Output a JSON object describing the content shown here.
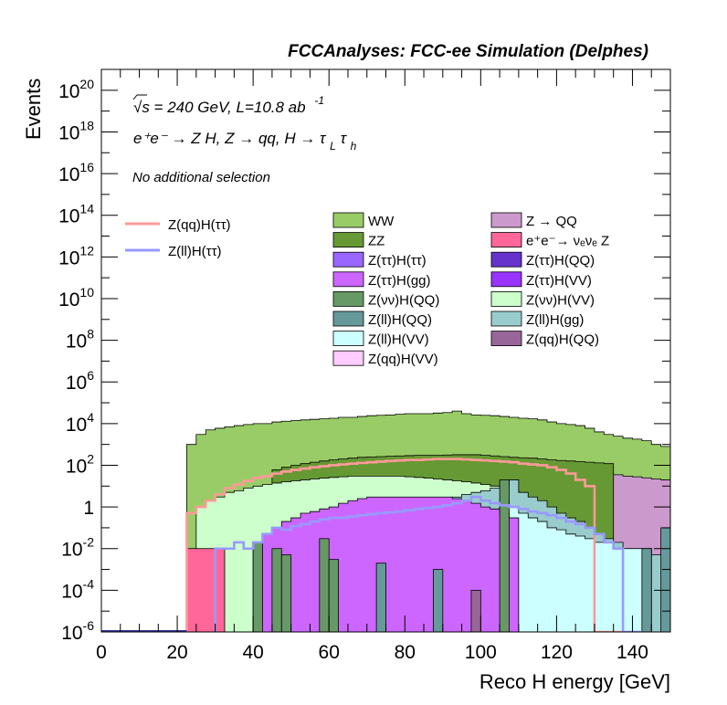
{
  "chart_data": {
    "type": "histogram",
    "title": "FCCAnalyses: FCC-ee Simulation (Delphes)",
    "xlabel": "Reco H energy [GeV]",
    "ylabel": "Events",
    "xlim": [
      0,
      150
    ],
    "ylim": [
      1e-06,
      1e+21
    ],
    "yscale": "log",
    "grid": false,
    "annotations": {
      "energy_lumi": "√s = 240 GeV, L=10.8 ab",
      "energy_lumi_exp": "-1",
      "process": "e⁺e⁻ → Z H, Z → qq, H → τ",
      "process_sub1": "L",
      "process_tau": "τ",
      "process_sub2": "h",
      "selection": "No additional selection"
    },
    "x_ticks": [
      0,
      20,
      40,
      60,
      80,
      100,
      120,
      140
    ],
    "y_ticks": [
      {
        "value": 1e-06,
        "base": "10",
        "exp": "-6"
      },
      {
        "value": 0.0001,
        "base": "10",
        "exp": "-4"
      },
      {
        "value": 0.01,
        "base": "10",
        "exp": "-2"
      },
      {
        "value": 1,
        "base": "1",
        "exp": ""
      },
      {
        "value": 100.0,
        "base": "10",
        "exp": "2"
      },
      {
        "value": 10000.0,
        "base": "10",
        "exp": "4"
      },
      {
        "value": 1000000.0,
        "base": "10",
        "exp": "6"
      },
      {
        "value": 100000000.0,
        "base": "10",
        "exp": "8"
      },
      {
        "value": 10000000000.0,
        "base": "10",
        "exp": "10"
      },
      {
        "value": 1000000000000.0,
        "base": "10",
        "exp": "12"
      },
      {
        "value": 100000000000000.0,
        "base": "10",
        "exp": "14"
      },
      {
        "value": 1e+16,
        "base": "10",
        "exp": "16"
      },
      {
        "value": 1e+18,
        "base": "10",
        "exp": "18"
      },
      {
        "value": 1e+20,
        "base": "10",
        "exp": "20"
      }
    ],
    "bin_edges_start": 20,
    "bin_width": 2.5,
    "stacked_envelopes": [
      {
        "name": "WW",
        "color": "#99cc66",
        "x0": 22.5,
        "x1": 150,
        "levels": [
          1000.0,
          3000.0,
          5000.0,
          6000.0,
          7000.0,
          8000.0,
          9000.0,
          10000.0,
          10000.0,
          12000.0,
          13000.0,
          14000.0,
          15000.0,
          16000.0,
          17000.0,
          18000.0,
          20000.0,
          20000.0,
          22000.0,
          24000.0,
          25000.0,
          26000.0,
          28000.0,
          30000.0,
          30000.0,
          30000.0,
          32000.0,
          34000.0,
          40000.0,
          30000.0,
          26000.0,
          25000.0,
          24000.0,
          22000.0,
          20000.0,
          18000.0,
          17000.0,
          15000.0,
          12000.0,
          10000.0,
          9000.0,
          8000.0,
          6000.0,
          4000.0,
          3000.0,
          2500.0,
          2000.0,
          1800.0,
          1500.0,
          1000.0,
          800.0
        ]
      },
      {
        "name": "Z → QQ",
        "color": "#cc99cc",
        "x0": 45,
        "x1": 150,
        "levels": [
          20,
          25,
          30,
          35,
          40,
          45,
          50,
          60,
          70,
          80,
          90,
          100,
          110,
          120,
          130,
          140,
          150,
          160,
          170,
          180,
          190,
          200,
          200,
          180,
          160,
          140,
          120,
          100,
          90,
          80,
          70,
          60,
          55,
          50,
          45,
          40,
          35,
          30,
          28,
          25,
          22,
          20
        ]
      },
      {
        "name": "ZZ",
        "color": "#669933",
        "x0": 45,
        "x1": 135,
        "levels": [
          60,
          80,
          100,
          120,
          140,
          160,
          180,
          200,
          220,
          240,
          250,
          260,
          270,
          280,
          290,
          300,
          300,
          300,
          310,
          320,
          320,
          320,
          300,
          280,
          260,
          240,
          230,
          220,
          200,
          180,
          170,
          160,
          150,
          140,
          130,
          120
        ]
      },
      {
        "name": "Z(ττ)H(ττ)",
        "color": "#9966ff",
        "x0": 35,
        "x1": 110,
        "levels": [
          0.05,
          0.5,
          1,
          2,
          3,
          4,
          5,
          6,
          7,
          8,
          9,
          10,
          10,
          11,
          12,
          12,
          12,
          13,
          13,
          14,
          14,
          15,
          15,
          15,
          14,
          13,
          12,
          10,
          6,
          3
        ]
      },
      {
        "name": "Z(νν)H(VV)",
        "color": "#ccffcc",
        "x0": 25,
        "x1": 110,
        "levels": [
          1,
          2,
          3,
          5,
          6,
          8,
          10,
          12,
          14,
          16,
          18,
          20,
          22,
          24,
          26,
          28,
          30,
          30,
          30,
          30,
          30,
          30,
          28,
          26,
          24,
          22,
          20,
          18,
          16,
          14,
          12,
          10,
          8,
          6
        ]
      },
      {
        "name": "Z(ll)H(gg)",
        "color": "#99cccc",
        "x0": 55,
        "x1": 150,
        "levels": [
          0.01,
          0.02,
          0.03,
          0.05,
          0.08,
          0.1,
          0.2,
          0.3,
          0.5,
          0.8,
          1,
          1.2,
          1.5,
          2,
          2.5,
          3,
          4,
          5,
          6,
          8,
          10,
          20,
          5,
          3,
          2,
          1,
          0.5,
          0.3,
          0.2,
          0.1,
          0.05,
          0.03,
          0.02,
          0.01,
          0.01,
          0.01,
          0.005,
          0.005
        ]
      },
      {
        "name": "Z(ll)H(VV)",
        "color": "#ccffff",
        "x0": 105,
        "x1": 145,
        "levels": [
          2,
          1,
          0.5,
          0.3,
          0.2,
          0.1,
          0.08,
          0.05,
          0.04,
          0.03,
          0.02,
          0.02,
          0.01,
          0.01,
          0.01,
          0.01
        ]
      },
      {
        "name": "Z(ττ)H(gg)",
        "color": "#cc66ff",
        "x0": 40,
        "x1": 110,
        "levels": [
          0.02,
          0.05,
          0.1,
          0.2,
          0.3,
          0.5,
          0.6,
          0.8,
          1,
          1.5,
          2,
          2.5,
          3,
          3,
          3,
          3,
          3,
          3,
          3,
          3,
          3,
          2.5,
          2,
          1.5,
          1,
          0.8,
          0.5,
          0.3
        ]
      }
    ],
    "spikes": [
      {
        "name": "e⁺e⁻→ νₑνₑ Z",
        "color": "#ff6699",
        "x0": 22.5,
        "x1": 32.5,
        "value": 0.01
      },
      {
        "name": "Z(ll)H(QQ)",
        "color": "#669999",
        "x0": 32.5,
        "x1": 35,
        "value": 1e-06
      },
      {
        "name": "Z(νν)H(QQ)",
        "color": "#669966",
        "x0": 40,
        "x1": 42.5,
        "value": 0.02
      },
      {
        "name": "Z(νν)H(QQ)",
        "color": "#669966",
        "x0": 45,
        "x1": 47.5,
        "value": 0.01
      },
      {
        "name": "Z(νν)H(QQ)",
        "color": "#669966",
        "x0": 47.5,
        "x1": 50,
        "value": 0.005
      },
      {
        "name": "Z(νν)H(QQ)",
        "color": "#669966",
        "x0": 57.5,
        "x1": 60,
        "value": 0.03
      },
      {
        "name": "Z(νν)H(QQ)",
        "color": "#669966",
        "x0": 60,
        "x1": 62.5,
        "value": 0.003
      },
      {
        "name": "Z(ll)H(QQ)",
        "color": "#669999",
        "x0": 72.5,
        "x1": 75,
        "value": 0.002
      },
      {
        "name": "Z(ll)H(QQ)",
        "color": "#669999",
        "x0": 87.5,
        "x1": 90,
        "value": 0.001
      },
      {
        "name": "Z(qq)H(QQ)",
        "color": "#996699",
        "x0": 97.5,
        "x1": 100,
        "value": 0.0001
      },
      {
        "name": "Z(νν)H(QQ)",
        "color": "#669966",
        "x0": 105,
        "x1": 107.5,
        "value": 20
      },
      {
        "name": "Z(ll)H(QQ)",
        "color": "#669999",
        "x0": 142.5,
        "x1": 145,
        "value": 0.01
      },
      {
        "name": "Z(ll)H(QQ)",
        "color": "#669999",
        "x0": 147.5,
        "x1": 150,
        "value": 0.1
      }
    ],
    "overlay_lines": [
      {
        "name": "Z(qq)H(ττ)",
        "color": "#ff9999",
        "x0": 22.5,
        "points": [
          0.5,
          1,
          2,
          4,
          8,
          12,
          18,
          25,
          30,
          40,
          50,
          60,
          70,
          80,
          90,
          100,
          110,
          120,
          130,
          140,
          150,
          160,
          170,
          180,
          180,
          190,
          200,
          200,
          200,
          190,
          180,
          170,
          160,
          150,
          140,
          120,
          110,
          100,
          80,
          60,
          40,
          20,
          10,
          1e-06,
          1e-06,
          1e-06
        ],
        "end_x": 137.5
      },
      {
        "name": "Z(ll)H(ττ)",
        "color": "#9999ff",
        "x0": 30,
        "points": [
          0.01,
          0.01,
          0.02,
          0.01,
          0.02,
          0.05,
          0.1,
          0.08,
          0.12,
          0.15,
          0.2,
          0.25,
          0.3,
          0.3,
          0.35,
          0.4,
          0.45,
          0.5,
          0.55,
          0.6,
          0.7,
          0.8,
          0.9,
          1,
          1.2,
          1.5,
          2,
          3,
          2,
          1.5,
          1.2,
          1,
          0.8,
          0.6,
          0.5,
          0.4,
          0.3,
          0.2,
          0.15,
          0.1,
          0.05,
          0.02,
          0.01,
          1e-06,
          1e-06
        ],
        "end_x": 142.5
      },
      {
        "name": "",
        "color": "#333399",
        "x0": 0,
        "points": [
          1e-06
        ],
        "end_x": 22.5,
        "flat": true
      }
    ],
    "legend": {
      "lines": [
        {
          "label": "Z(qq)H(ττ)",
          "color": "#ff9999"
        },
        {
          "label": "Z(ll)H(ττ)",
          "color": "#9999ff"
        }
      ],
      "boxes_col1": [
        {
          "label": "WW",
          "color": "#99cc66"
        },
        {
          "label": "ZZ",
          "color": "#669933"
        },
        {
          "label": "Z(ττ)H(ττ)",
          "color": "#9966ff"
        },
        {
          "label": "Z(ττ)H(gg)",
          "color": "#cc66ff"
        },
        {
          "label": "Z(νν)H(QQ)",
          "color": "#669966"
        },
        {
          "label": "Z(ll)H(QQ)",
          "color": "#669999"
        },
        {
          "label": "Z(ll)H(VV)",
          "color": "#ccffff"
        },
        {
          "label": "Z(qq)H(VV)",
          "color": "#ffccff"
        }
      ],
      "boxes_col2": [
        {
          "label": "Z → QQ",
          "color": "#cc99cc"
        },
        {
          "label": "e⁺e⁻→ νₑνₑ Z",
          "color": "#ff6699"
        },
        {
          "label": "Z(ττ)H(QQ)",
          "color": "#6633cc"
        },
        {
          "label": "Z(ττ)H(VV)",
          "color": "#9933ff"
        },
        {
          "label": "Z(νν)H(VV)",
          "color": "#ccffcc"
        },
        {
          "label": "Z(ll)H(gg)",
          "color": "#99cccc"
        },
        {
          "label": "Z(qq)H(QQ)",
          "color": "#996699"
        }
      ]
    }
  }
}
